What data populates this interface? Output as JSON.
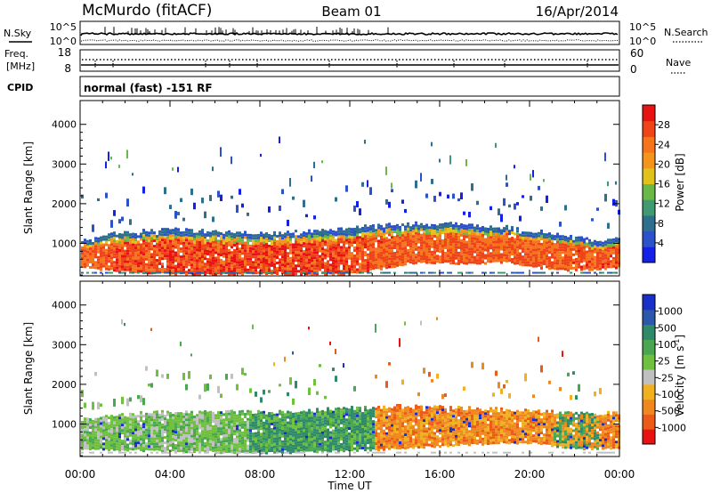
{
  "header": {
    "title": "McMurdo (fitACF)",
    "beam": "Beam 01",
    "date": "16/Apr/2014"
  },
  "panels": {
    "nsky": {
      "left_label": "N.Sky",
      "right_label": "N.Search",
      "ticks_left": [
        "10^5",
        "10^0"
      ],
      "ticks_right": [
        "10^5",
        "10^0"
      ]
    },
    "freq": {
      "left_label_top": "Freq.",
      "left_label_unit": "[MHz]",
      "right_label": "Nave",
      "ticks_left": [
        "18",
        "8"
      ],
      "ticks_right": [
        "60",
        "0"
      ]
    },
    "cpid": {
      "label": "CPID",
      "text": "normal (fast) -151 RF"
    }
  },
  "chart_data": [
    {
      "type": "heatmap",
      "quantity": "Power",
      "ylabel": "Slant Range [km]",
      "ylim": [
        180,
        4600
      ],
      "y_ticks": [
        "1000",
        "2000",
        "3000",
        "4000"
      ],
      "colorbar": {
        "label": "Power [dB]",
        "range": [
          0,
          32
        ],
        "ticks": [
          "4",
          "8",
          "12",
          "16",
          "20",
          "24",
          "28"
        ],
        "colors": [
          "#1520e6",
          "#2b52c8",
          "#2f6f8e",
          "#3f9a70",
          "#6ab848",
          "#e1c21a",
          "#f5941a",
          "#f5741c",
          "#ee4418",
          "#e81212"
        ]
      },
      "time_profile": [
        {
          "t": 0,
          "lower": 600,
          "upper": 1100,
          "strength": 0.55
        },
        {
          "t": 1,
          "lower": 500,
          "upper": 1200,
          "strength": 0.6
        },
        {
          "t": 2,
          "lower": 450,
          "upper": 1300,
          "strength": 0.7
        },
        {
          "t": 4,
          "lower": 400,
          "upper": 1350,
          "strength": 0.8
        },
        {
          "t": 6,
          "lower": 350,
          "upper": 1300,
          "strength": 0.85
        },
        {
          "t": 8,
          "lower": 350,
          "upper": 1250,
          "strength": 0.9
        },
        {
          "t": 10,
          "lower": 350,
          "upper": 1300,
          "strength": 0.85
        },
        {
          "t": 12,
          "lower": 400,
          "upper": 1400,
          "strength": 0.75
        },
        {
          "t": 13,
          "lower": 500,
          "upper": 1450,
          "strength": 0.6
        },
        {
          "t": 15,
          "lower": 700,
          "upper": 1500,
          "strength": 0.55
        },
        {
          "t": 17,
          "lower": 650,
          "upper": 1500,
          "strength": 0.55
        },
        {
          "t": 19,
          "lower": 700,
          "upper": 1400,
          "strength": 0.5
        },
        {
          "t": 21,
          "lower": 500,
          "upper": 1250,
          "strength": 0.55
        },
        {
          "t": 22.5,
          "lower": 500,
          "upper": 1100,
          "strength": 0.6
        },
        {
          "t": 24,
          "lower": 550,
          "upper": 1100,
          "strength": 0.6
        }
      ]
    },
    {
      "type": "heatmap",
      "quantity": "Velocity",
      "ylabel": "Slant Range [km]",
      "xlabel": "Time UT",
      "ylim": [
        180,
        4600
      ],
      "xlim": [
        0,
        24
      ],
      "x_ticks": [
        "00:00",
        "04:00",
        "08:00",
        "12:00",
        "16:00",
        "20:00",
        "00:00"
      ],
      "y_ticks": [
        "1000",
        "2000",
        "3000",
        "4000"
      ],
      "colorbar": {
        "label": "Velocity",
        "unit": "[m s",
        "unit_exp": "-1",
        "unit_close": "]",
        "ticks": [
          "1000",
          "500",
          "100",
          "25",
          "-25",
          "-100",
          "-500",
          "-1000"
        ],
        "colors": [
          "#1a2fc8",
          "#2b58a8",
          "#2f8a6a",
          "#4aa650",
          "#70c040",
          "#c0c0c0",
          "#f0b020",
          "#f08820",
          "#ec5a18",
          "#e81212"
        ]
      },
      "time_profile": [
        {
          "t": 0,
          "lower": 500,
          "upper": 1100,
          "class": "green"
        },
        {
          "t": 3,
          "lower": 450,
          "upper": 1300,
          "class": "green"
        },
        {
          "t": 6,
          "lower": 400,
          "upper": 1300,
          "class": "green"
        },
        {
          "t": 9,
          "lower": 400,
          "upper": 1300,
          "class": "darkgreen"
        },
        {
          "t": 12,
          "lower": 450,
          "upper": 1400,
          "class": "darkgreen"
        },
        {
          "t": 14,
          "lower": 500,
          "upper": 1450,
          "class": "orange"
        },
        {
          "t": 17,
          "lower": 600,
          "upper": 1400,
          "class": "orange"
        },
        {
          "t": 20,
          "lower": 650,
          "upper": 1350,
          "class": "orange"
        },
        {
          "t": 22,
          "lower": 500,
          "upper": 1250,
          "class": "mixed"
        },
        {
          "t": 24,
          "lower": 500,
          "upper": 1300,
          "class": "orange"
        }
      ]
    }
  ]
}
